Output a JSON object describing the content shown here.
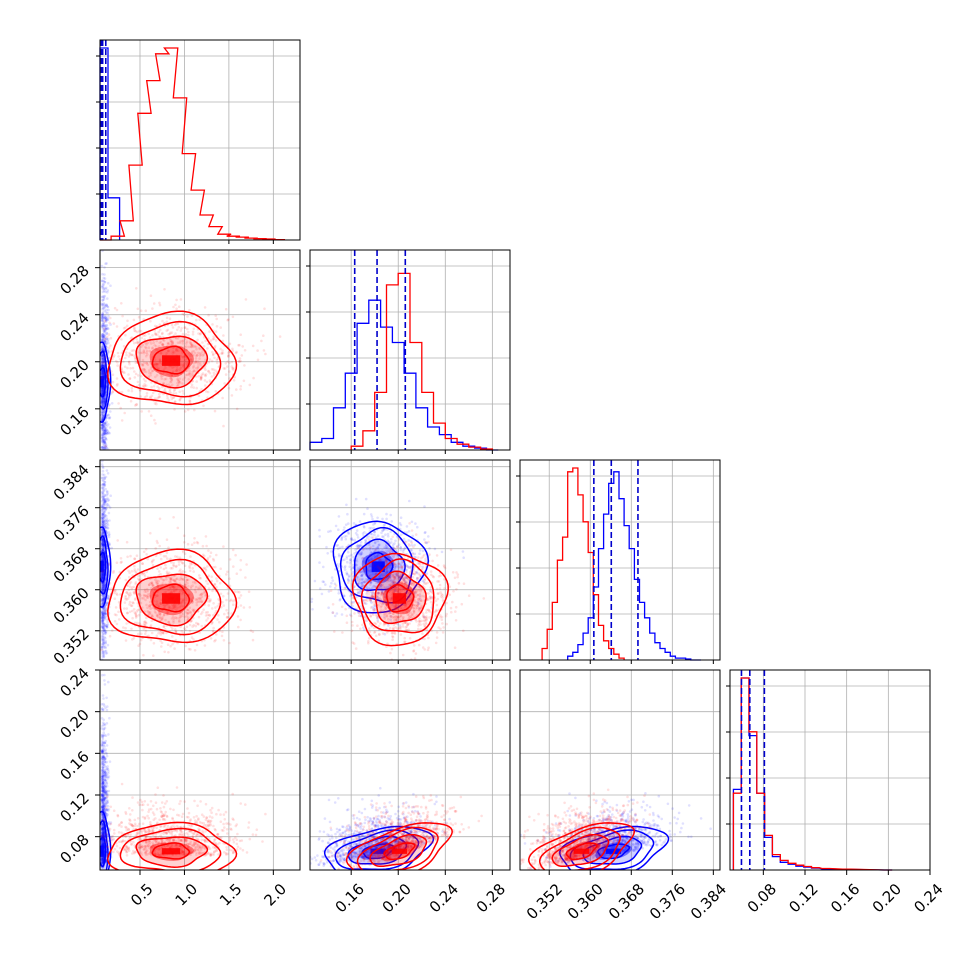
{
  "chart_data": {
    "type": "corner",
    "title": "",
    "parameters": [
      {
        "key": "p1",
        "label": "",
        "range": [
          0.05,
          2.3
        ],
        "ticks": [
          "0.5",
          "1.0",
          "1.5",
          "2.0"
        ],
        "tick_values": [
          0.5,
          1.0,
          1.5,
          2.0
        ]
      },
      {
        "key": "p2",
        "label": "",
        "range": [
          0.125,
          0.295
        ],
        "ticks": [
          "0.16",
          "0.20",
          "0.24",
          "0.28"
        ],
        "tick_values": [
          0.16,
          0.2,
          0.24,
          0.28
        ]
      },
      {
        "key": "p3",
        "label": "",
        "range": [
          0.3463,
          0.3853
        ],
        "ticks": [
          "0.352",
          "0.360",
          "0.368",
          "0.376",
          "0.384"
        ],
        "tick_values": [
          0.352,
          0.36,
          0.368,
          0.376,
          0.384
        ]
      },
      {
        "key": "p4",
        "label": "",
        "range": [
          0.048,
          0.24
        ],
        "ticks": [
          "0.08",
          "0.12",
          "0.16",
          "0.20",
          "0.24"
        ],
        "tick_values": [
          0.08,
          0.12,
          0.16,
          0.2,
          0.24
        ]
      }
    ],
    "series": [
      {
        "name": "",
        "color": "#0000ff",
        "quantiles": {
          "p1": [
            0.065,
            0.08,
            0.115
          ],
          "p2": [
            0.163,
            0.182,
            0.206
          ],
          "p3": [
            0.3607,
            0.3641,
            0.3693
          ],
          "p4": [
            0.059,
            0.067,
            0.081
          ]
        },
        "hist": {
          "p1": {
            "x": [
              0.075,
              0.205
            ],
            "y": [
              1.0,
              0.22
            ]
          },
          "p2": {
            "x": [
              0.13,
              0.14,
              0.15,
              0.16,
              0.17,
              0.18,
              0.19,
              0.2,
              0.21,
              0.22,
              0.23,
              0.24,
              0.25,
              0.26,
              0.27,
              0.28
            ],
            "y": [
              0.04,
              0.06,
              0.22,
              0.4,
              0.66,
              0.78,
              0.64,
              0.56,
              0.4,
              0.22,
              0.12,
              0.08,
              0.04,
              0.02,
              0.01,
              0.0
            ]
          },
          "p3": {
            "x": [
              0.3561,
              0.3571,
              0.3581,
              0.3591,
              0.3601,
              0.3611,
              0.3621,
              0.3631,
              0.3641,
              0.3651,
              0.3661,
              0.3671,
              0.3681,
              0.3691,
              0.3701,
              0.3711,
              0.3721,
              0.3731,
              0.3741,
              0.3751,
              0.3761,
              0.3771,
              0.3781,
              0.3791,
              0.3801,
              0.3811
            ],
            "y": [
              0.02,
              0.04,
              0.08,
              0.14,
              0.22,
              0.38,
              0.58,
              0.76,
              0.92,
              0.98,
              0.84,
              0.7,
              0.58,
              0.42,
              0.3,
              0.22,
              0.14,
              0.09,
              0.06,
              0.04,
              0.02,
              0.01,
              0.01,
              0.005,
              0.0,
              0.0
            ]
          },
          "p4": {
            "x": [
              0.055,
              0.0625,
              0.07,
              0.0775,
              0.085,
              0.0925,
              0.1,
              0.1075,
              0.115,
              0.1225,
              0.13,
              0.14,
              0.16,
              0.2
            ],
            "y": [
              0.42,
              1.0,
              0.7,
              0.4,
              0.17,
              0.07,
              0.04,
              0.03,
              0.02,
              0.015,
              0.01,
              0.006,
              0.003,
              0.0
            ]
          }
        },
        "centers": {
          "p1": 0.07,
          "p2": 0.183,
          "p3": 0.3645,
          "p4": 0.066
        }
      },
      {
        "name": "",
        "color": "#ff0000",
        "hist": {
          "p1": {
            "x": [
              0.1,
              0.25,
              0.35,
              0.45,
              0.55,
              0.65,
              0.75,
              0.85,
              0.95,
              1.05,
              1.15,
              1.25,
              1.35,
              1.45,
              1.55,
              1.65,
              1.75,
              1.85,
              1.95,
              2.05
            ],
            "y": [
              0.0,
              0.02,
              0.1,
              0.39,
              0.66,
              0.83,
              0.97,
              1.0,
              0.74,
              0.45,
              0.26,
              0.13,
              0.07,
              0.03,
              0.02,
              0.015,
              0.01,
              0.007,
              0.005,
              0.002
            ]
          },
          "p2": {
            "x": [
              0.165,
              0.175,
              0.185,
              0.195,
              0.205,
              0.215,
              0.225,
              0.235,
              0.245,
              0.255,
              0.265,
              0.275
            ],
            "y": [
              0.02,
              0.1,
              0.3,
              0.86,
              0.92,
              0.56,
              0.3,
              0.14,
              0.06,
              0.03,
              0.015,
              0.005
            ]
          },
          "p3": {
            "x": [
              0.3511,
              0.3521,
              0.3531,
              0.3541,
              0.3551,
              0.3561,
              0.3571,
              0.3581,
              0.3591,
              0.3601,
              0.3611,
              0.3621,
              0.3631,
              0.3641,
              0.3651,
              0.3661
            ],
            "y": [
              0.06,
              0.16,
              0.3,
              0.52,
              0.64,
              0.98,
              1.0,
              0.86,
              0.72,
              0.56,
              0.34,
              0.18,
              0.1,
              0.06,
              0.03,
              0.01
            ]
          },
          "p4": {
            "x": [
              0.055,
              0.0625,
              0.07,
              0.0775,
              0.085,
              0.0925,
              0.1,
              0.1075,
              0.115,
              0.1225,
              0.13,
              0.14,
              0.16,
              0.2
            ],
            "y": [
              0.4,
              1.0,
              0.72,
              0.4,
              0.18,
              0.08,
              0.05,
              0.035,
              0.025,
              0.018,
              0.012,
              0.008,
              0.004,
              0.0
            ]
          }
        },
        "centers": {
          "p1": 0.85,
          "p2": 0.201,
          "p3": 0.3583,
          "p4": 0.066
        }
      }
    ],
    "grid": true,
    "legend": "none"
  }
}
